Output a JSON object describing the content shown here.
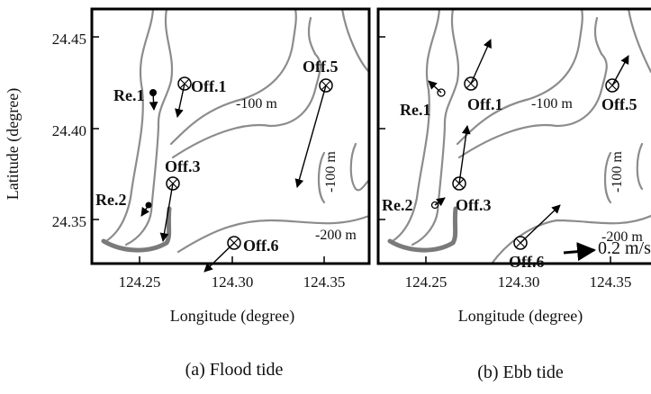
{
  "y_axis": {
    "label": "Latitude (degree)",
    "ticks": [
      "24.45",
      "24.40",
      "24.35"
    ]
  },
  "panels": [
    {
      "id": "a",
      "x_axis_label": "Longitude (degree)",
      "x_ticks": [
        "124.25",
        "124.30",
        "124.35"
      ],
      "caption": "(a) Flood tide",
      "stations": [
        {
          "label": "Re.1"
        },
        {
          "label": "Off.1"
        },
        {
          "label": "Off.3"
        },
        {
          "label": "Re.2"
        },
        {
          "label": "Off.5"
        },
        {
          "label": "Off.6"
        }
      ],
      "depth_labels": [
        "-100 m",
        "-100 m",
        "-200 m"
      ]
    },
    {
      "id": "b",
      "x_axis_label": "Longitude (degree)",
      "x_ticks": [
        "124.25",
        "124.30",
        "124.35"
      ],
      "caption": "(b) Ebb tide",
      "stations": [
        {
          "label": "Re.1"
        },
        {
          "label": "Off.1"
        },
        {
          "label": "Off.3"
        },
        {
          "label": "Re.2"
        },
        {
          "label": "Off.5"
        },
        {
          "label": "Off.6"
        }
      ],
      "depth_labels": [
        "-100 m",
        "-100 m",
        "-200 m"
      ],
      "scale_label": "0.2 m/s"
    }
  ]
}
